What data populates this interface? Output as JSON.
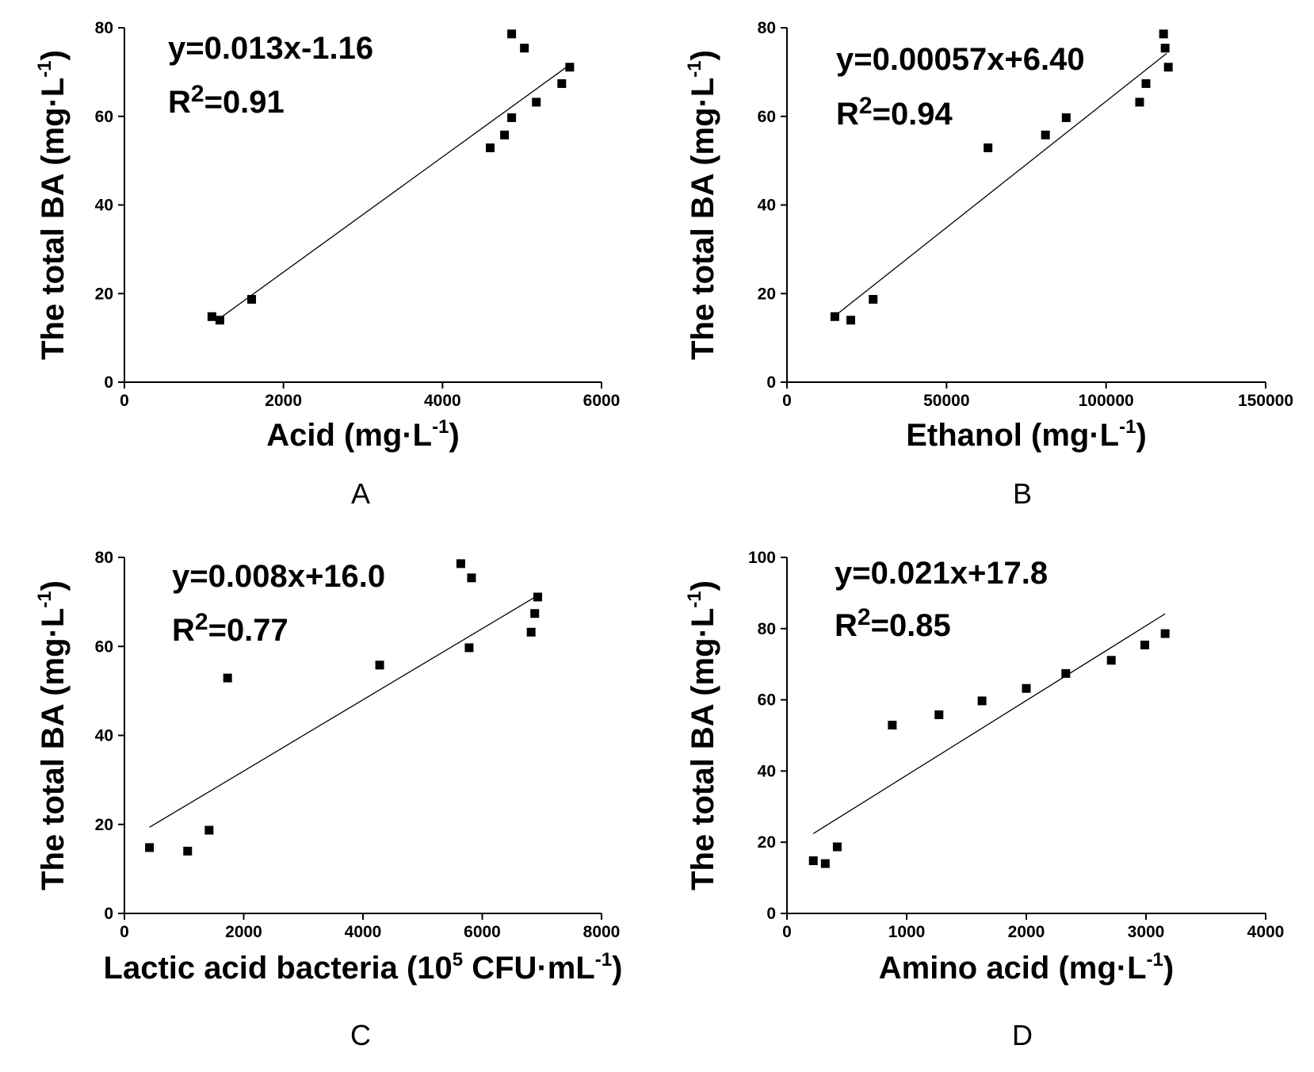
{
  "chart_data": [
    {
      "type": "scatter",
      "panel_label": "A",
      "equation": "y=0.013x-1.16",
      "r2_prefix": "R",
      "r2_sup": "2",
      "r2_value": "=0.91",
      "xlabel": "Acid (mg·L",
      "xlabel_sup": "-1",
      "xlabel_end": ")",
      "ylabel": "The total BA (mg·L",
      "ylabel_sup": "-1",
      "ylabel_end": ")",
      "xlim": [
        0,
        6000
      ],
      "ylim": [
        0,
        80
      ],
      "xticks": [
        0,
        2000,
        4000,
        6000
      ],
      "yticks": [
        0,
        20,
        40,
        60,
        80
      ],
      "points": [
        {
          "x": 1100,
          "y": 14.8
        },
        {
          "x": 1200,
          "y": 14.0
        },
        {
          "x": 1600,
          "y": 18.7
        },
        {
          "x": 4600,
          "y": 52.9
        },
        {
          "x": 4780,
          "y": 55.8
        },
        {
          "x": 4870,
          "y": 59.7
        },
        {
          "x": 5180,
          "y": 63.2
        },
        {
          "x": 5500,
          "y": 67.4
        },
        {
          "x": 5600,
          "y": 71.1
        },
        {
          "x": 5030,
          "y": 75.4
        },
        {
          "x": 4870,
          "y": 78.6
        }
      ],
      "fit": {
        "slope": 0.013,
        "intercept": -1.16,
        "x_range": [
          1150,
          5600
        ]
      }
    },
    {
      "type": "scatter",
      "panel_label": "B",
      "equation": "y=0.00057x+6.40",
      "r2_prefix": "R",
      "r2_sup": "2",
      "r2_value": "=0.94",
      "xlabel": "Ethanol (mg·L",
      "xlabel_sup": "-1",
      "xlabel_end": ")",
      "ylabel": "The total BA (mg·L",
      "ylabel_sup": "-1",
      "ylabel_end": ")",
      "xlim": [
        0,
        150000
      ],
      "ylim": [
        0,
        80
      ],
      "xticks": [
        0,
        50000,
        100000,
        150000
      ],
      "yticks": [
        0,
        20,
        40,
        60,
        80
      ],
      "points": [
        {
          "x": 15000,
          "y": 14.8
        },
        {
          "x": 20000,
          "y": 14.0
        },
        {
          "x": 27000,
          "y": 18.7
        },
        {
          "x": 63000,
          "y": 52.9
        },
        {
          "x": 81000,
          "y": 55.8
        },
        {
          "x": 87500,
          "y": 59.7
        },
        {
          "x": 110500,
          "y": 63.2
        },
        {
          "x": 112500,
          "y": 67.4
        },
        {
          "x": 119500,
          "y": 71.1
        },
        {
          "x": 118500,
          "y": 75.4
        },
        {
          "x": 118000,
          "y": 78.6
        }
      ],
      "fit": {
        "slope": 0.00057,
        "intercept": 6.4,
        "x_range": [
          15000,
          119000
        ]
      }
    },
    {
      "type": "scatter",
      "panel_label": "C",
      "equation": "y=0.008x+16.0",
      "r2_prefix": "R",
      "r2_sup": "2",
      "r2_value": "=0.77",
      "xlabel": "Lactic acid bacteria (10",
      "xlabel_sup": "5",
      "xlabel_mid": " CFU·mL",
      "xlabel_sup2": "-1",
      "xlabel_end": ")",
      "ylabel": "The total BA (mg·L",
      "ylabel_sup": "-1",
      "ylabel_end": ")",
      "xlim": [
        0,
        8000
      ],
      "ylim": [
        0,
        80
      ],
      "xticks": [
        0,
        2000,
        4000,
        6000,
        8000
      ],
      "yticks": [
        0,
        20,
        40,
        60,
        80
      ],
      "points": [
        {
          "x": 420,
          "y": 14.8
        },
        {
          "x": 1060,
          "y": 14.0
        },
        {
          "x": 1420,
          "y": 18.7
        },
        {
          "x": 1730,
          "y": 52.9
        },
        {
          "x": 4280,
          "y": 55.8
        },
        {
          "x": 5780,
          "y": 59.7
        },
        {
          "x": 6820,
          "y": 63.2
        },
        {
          "x": 6880,
          "y": 67.4
        },
        {
          "x": 6930,
          "y": 71.1
        },
        {
          "x": 5820,
          "y": 75.4
        },
        {
          "x": 5640,
          "y": 78.6
        }
      ],
      "fit": {
        "slope": 0.008,
        "intercept": 16.0,
        "x_range": [
          420,
          6900
        ]
      }
    },
    {
      "type": "scatter",
      "panel_label": "D",
      "equation": "y=0.021x+17.8",
      "r2_prefix": "R",
      "r2_sup": "2",
      "r2_value": "=0.85",
      "xlabel": "Amino acid (mg·L",
      "xlabel_sup": "-1",
      "xlabel_end": ")",
      "ylabel": "The total BA (mg·L",
      "ylabel_sup": "-1",
      "ylabel_end": ")",
      "xlim": [
        0,
        4000
      ],
      "ylim": [
        0,
        100
      ],
      "xticks": [
        0,
        1000,
        2000,
        3000,
        4000
      ],
      "yticks": [
        0,
        20,
        40,
        60,
        80,
        100
      ],
      "points": [
        {
          "x": 220,
          "y": 14.8
        },
        {
          "x": 320,
          "y": 14.0
        },
        {
          "x": 420,
          "y": 18.7
        },
        {
          "x": 880,
          "y": 52.9
        },
        {
          "x": 1270,
          "y": 55.8
        },
        {
          "x": 1630,
          "y": 59.7
        },
        {
          "x": 2000,
          "y": 63.2
        },
        {
          "x": 2330,
          "y": 67.4
        },
        {
          "x": 2710,
          "y": 71.1
        },
        {
          "x": 2990,
          "y": 75.4
        },
        {
          "x": 3160,
          "y": 78.6
        }
      ],
      "fit": {
        "slope": 0.021,
        "intercept": 17.8,
        "x_range": [
          220,
          3160
        ]
      }
    }
  ]
}
